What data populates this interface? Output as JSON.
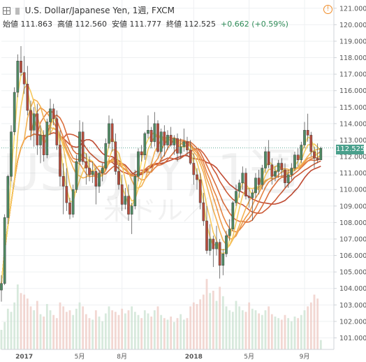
{
  "header": {
    "title": "U.S. Dollar/Japanese Yen, 1週, FXCM",
    "ohlc": [
      {
        "label": "始値",
        "value": "111.863"
      },
      {
        "label": "高値",
        "value": "112.560"
      },
      {
        "label": "安値",
        "value": "111.777"
      },
      {
        "label": "終値",
        "value": "112.525"
      }
    ],
    "change": "+0.662 (+0.59%)",
    "icons": {
      "expand": "expand-icon",
      "alert": "alert-icon"
    },
    "alert_glyph": "!"
  },
  "watermark": {
    "symbol": "USDJPY, 1週",
    "name": "米ドル／円"
  },
  "last_price_label": "112.525",
  "colors": {
    "up": "#4e8a63",
    "down": "#b84c3c",
    "last": "#4aa08c",
    "ribbon": [
      "#f8dc68",
      "#f6c85c",
      "#f3b152",
      "#ee9a4a",
      "#e58443",
      "#da6e3c",
      "#cc5a37",
      "#bf4a32"
    ]
  },
  "chart_data": {
    "type": "candlestick",
    "title": "U.S. Dollar/Japanese Yen, 1週, FXCM",
    "y_ticks": [
      "101.000",
      "102.000",
      "103.000",
      "104.000",
      "105.000",
      "106.000",
      "107.000",
      "108.000",
      "109.000",
      "110.000",
      "111.000",
      "112.000",
      "113.000",
      "114.000",
      "115.000",
      "116.000",
      "117.000",
      "118.000",
      "119.000",
      "120.000",
      "121.000"
    ],
    "ylim": [
      100.3,
      121.5
    ],
    "x_ticks": [
      {
        "label": "2017",
        "index": 7
      },
      {
        "label": "5月",
        "index": 24
      },
      {
        "label": "8月",
        "index": 37
      },
      {
        "label": "2018",
        "index": 59
      },
      {
        "label": "5月",
        "index": 76
      },
      {
        "label": "9月",
        "index": 93
      }
    ],
    "xlim": [
      0,
      102
    ],
    "last_price": 112.525,
    "candles": [
      [
        0,
        103.9,
        104.8,
        103.2,
        104.3
      ],
      [
        1,
        104.3,
        108.5,
        104.2,
        108.3
      ],
      [
        2,
        108.3,
        110.9,
        107.9,
        110.8
      ],
      [
        3,
        110.8,
        113.9,
        110.5,
        113.5
      ],
      [
        4,
        113.5,
        116.2,
        113.3,
        115.9
      ],
      [
        5,
        115.9,
        118.2,
        115.6,
        117.8
      ],
      [
        6,
        117.8,
        118.7,
        116.9,
        117.1
      ],
      [
        7,
        117.1,
        118.1,
        115.8,
        116.4
      ],
      [
        8,
        116.4,
        117.5,
        114.5,
        114.8
      ],
      [
        9,
        114.8,
        115.4,
        113.0,
        113.6
      ],
      [
        10,
        113.6,
        115.0,
        112.6,
        114.6
      ],
      [
        11,
        114.6,
        115.2,
        112.1,
        112.7
      ],
      [
        12,
        112.7,
        113.9,
        111.6,
        113.3
      ],
      [
        13,
        113.3,
        113.6,
        111.7,
        112.1
      ],
      [
        14,
        112.1,
        114.3,
        111.9,
        114.1
      ],
      [
        15,
        114.1,
        115.5,
        113.3,
        114.9
      ],
      [
        16,
        114.9,
        115.2,
        113.9,
        114.3
      ],
      [
        17,
        114.3,
        114.8,
        112.4,
        112.7
      ],
      [
        18,
        112.7,
        113.6,
        110.2,
        110.8
      ],
      [
        19,
        110.8,
        111.6,
        108.5,
        110.2
      ],
      [
        20,
        110.2,
        111.3,
        108.7,
        109.2
      ],
      [
        21,
        109.2,
        109.5,
        108.2,
        108.5
      ],
      [
        22,
        108.5,
        110.3,
        108.3,
        110.0
      ],
      [
        23,
        110.0,
        112.1,
        109.8,
        111.7
      ],
      [
        24,
        111.7,
        114.2,
        111.5,
        113.5
      ],
      [
        25,
        113.5,
        114.1,
        111.5,
        111.7
      ],
      [
        26,
        111.7,
        112.2,
        110.3,
        111.3
      ],
      [
        27,
        111.3,
        112.0,
        110.5,
        110.9
      ],
      [
        28,
        110.9,
        111.7,
        110.4,
        111.1
      ],
      [
        29,
        111.1,
        111.4,
        109.1,
        110.2
      ],
      [
        30,
        110.2,
        111.2,
        109.8,
        111.0
      ],
      [
        31,
        111.0,
        111.6,
        110.5,
        111.3
      ],
      [
        32,
        111.3,
        113.1,
        111.2,
        112.8
      ],
      [
        33,
        112.8,
        114.5,
        112.5,
        114.0
      ],
      [
        34,
        114.0,
        114.3,
        112.3,
        112.9
      ],
      [
        35,
        112.9,
        113.4,
        110.9,
        111.1
      ],
      [
        36,
        111.1,
        111.5,
        110.0,
        110.3
      ],
      [
        37,
        110.3,
        110.9,
        108.7,
        109.1
      ],
      [
        38,
        109.1,
        110.1,
        108.8,
        109.6
      ],
      [
        39,
        109.6,
        110.3,
        108.1,
        108.5
      ],
      [
        40,
        108.5,
        109.2,
        107.3,
        109.0
      ],
      [
        41,
        109.0,
        111.2,
        108.8,
        110.8
      ],
      [
        42,
        110.8,
        112.5,
        110.5,
        112.3
      ],
      [
        43,
        112.3,
        112.7,
        111.7,
        112.1
      ],
      [
        44,
        112.1,
        113.5,
        111.8,
        113.4
      ],
      [
        45,
        113.4,
        114.5,
        113.1,
        113.6
      ],
      [
        46,
        113.6,
        113.8,
        112.5,
        112.9
      ],
      [
        47,
        112.9,
        114.7,
        112.6,
        114.0
      ],
      [
        48,
        114.0,
        114.2,
        112.2,
        112.3
      ],
      [
        49,
        112.3,
        113.7,
        111.9,
        113.5
      ],
      [
        50,
        113.5,
        113.9,
        112.0,
        112.7
      ],
      [
        51,
        112.7,
        113.6,
        112.4,
        113.3
      ],
      [
        52,
        113.3,
        113.8,
        112.6,
        112.7
      ],
      [
        53,
        112.7,
        113.3,
        112.1,
        113.1
      ],
      [
        54,
        113.1,
        113.4,
        111.7,
        112.2
      ],
      [
        55,
        112.2,
        113.1,
        111.9,
        112.6
      ],
      [
        56,
        112.6,
        113.7,
        112.3,
        112.9
      ],
      [
        57,
        112.9,
        113.2,
        112.0,
        112.4
      ],
      [
        58,
        112.4,
        113.0,
        111.5,
        111.6
      ],
      [
        59,
        111.6,
        112.2,
        110.3,
        110.9
      ],
      [
        60,
        110.9,
        111.3,
        110.0,
        110.6
      ],
      [
        61,
        110.6,
        111.0,
        108.8,
        109.2
      ],
      [
        62,
        109.2,
        109.8,
        107.8,
        108.1
      ],
      [
        63,
        108.1,
        109.0,
        106.1,
        106.3
      ],
      [
        64,
        106.3,
        107.9,
        106.0,
        107.0
      ],
      [
        65,
        107.0,
        107.2,
        105.3,
        106.4
      ],
      [
        66,
        106.4,
        107.8,
        106.0,
        106.8
      ],
      [
        67,
        106.8,
        107.0,
        104.6,
        105.4
      ],
      [
        68,
        105.4,
        106.4,
        104.8,
        106.1
      ],
      [
        69,
        106.1,
        107.5,
        105.9,
        107.2
      ],
      [
        70,
        107.2,
        108.2,
        106.9,
        107.6
      ],
      [
        71,
        107.6,
        109.3,
        107.5,
        109.2
      ],
      [
        72,
        109.2,
        110.3,
        109.0,
        109.9
      ],
      [
        73,
        109.9,
        110.6,
        109.5,
        110.4
      ],
      [
        74,
        110.4,
        111.4,
        110.0,
        111.0
      ],
      [
        75,
        111.0,
        111.3,
        109.4,
        109.6
      ],
      [
        76,
        109.6,
        110.1,
        108.9,
        109.5
      ],
      [
        77,
        109.5,
        110.0,
        108.1,
        109.8
      ],
      [
        78,
        109.8,
        111.0,
        109.5,
        110.7
      ],
      [
        79,
        110.7,
        111.2,
        109.7,
        110.3
      ],
      [
        80,
        110.3,
        111.5,
        110.0,
        111.3
      ],
      [
        81,
        111.3,
        112.6,
        111.0,
        112.3
      ],
      [
        82,
        112.3,
        113.0,
        111.3,
        111.5
      ],
      [
        83,
        111.5,
        111.9,
        110.3,
        110.8
      ],
      [
        84,
        110.8,
        111.4,
        110.5,
        111.1
      ],
      [
        85,
        111.1,
        111.8,
        110.7,
        111.6
      ],
      [
        86,
        111.6,
        111.9,
        110.8,
        111.2
      ],
      [
        87,
        111.2,
        111.6,
        110.1,
        110.4
      ],
      [
        88,
        110.4,
        111.2,
        110.1,
        110.9
      ],
      [
        89,
        110.9,
        111.6,
        110.6,
        111.3
      ],
      [
        90,
        111.3,
        112.3,
        111.1,
        112.1
      ],
      [
        91,
        112.1,
        112.5,
        111.4,
        111.8
      ],
      [
        92,
        111.8,
        112.9,
        111.6,
        112.7
      ],
      [
        93,
        112.7,
        114.1,
        112.5,
        113.6
      ],
      [
        94,
        113.6,
        114.6,
        112.9,
        113.3
      ],
      [
        95,
        113.3,
        113.5,
        112.0,
        112.3
      ],
      [
        96,
        112.3,
        112.6,
        111.3,
        111.9
      ],
      [
        97,
        111.9,
        112.8,
        111.6,
        111.8
      ],
      [
        98,
        111.8,
        112.6,
        111.8,
        112.5
      ]
    ],
    "volume": [
      0.25,
      0.35,
      0.52,
      0.48,
      0.6,
      0.83,
      0.72,
      0.7,
      0.65,
      0.55,
      0.5,
      0.62,
      0.45,
      0.42,
      0.58,
      0.5,
      0.44,
      0.4,
      0.6,
      0.55,
      0.48,
      0.5,
      0.44,
      0.52,
      0.6,
      0.55,
      0.45,
      0.4,
      0.38,
      0.5,
      0.42,
      0.36,
      0.46,
      0.55,
      0.5,
      0.48,
      0.44,
      0.52,
      0.46,
      0.5,
      0.55,
      0.48,
      0.44,
      0.4,
      0.5,
      0.46,
      0.42,
      0.5,
      0.55,
      0.44,
      0.4,
      0.38,
      0.42,
      0.35,
      0.4,
      0.45,
      0.38,
      0.4,
      0.55,
      0.6,
      0.58,
      0.64,
      0.7,
      0.9,
      0.72,
      0.75,
      0.62,
      0.8,
      0.68,
      0.55,
      0.5,
      0.48,
      0.62,
      0.55,
      0.5,
      0.48,
      0.6,
      0.52,
      0.5,
      0.46,
      0.44,
      0.5,
      0.55,
      0.45,
      0.42,
      0.4,
      0.38,
      0.44,
      0.4,
      0.36,
      0.42,
      0.4,
      0.44,
      0.5,
      0.55,
      0.6,
      0.7,
      0.65,
      0.12
    ],
    "ma_periods": [
      3,
      5,
      8,
      10,
      12,
      15,
      20,
      25
    ]
  }
}
